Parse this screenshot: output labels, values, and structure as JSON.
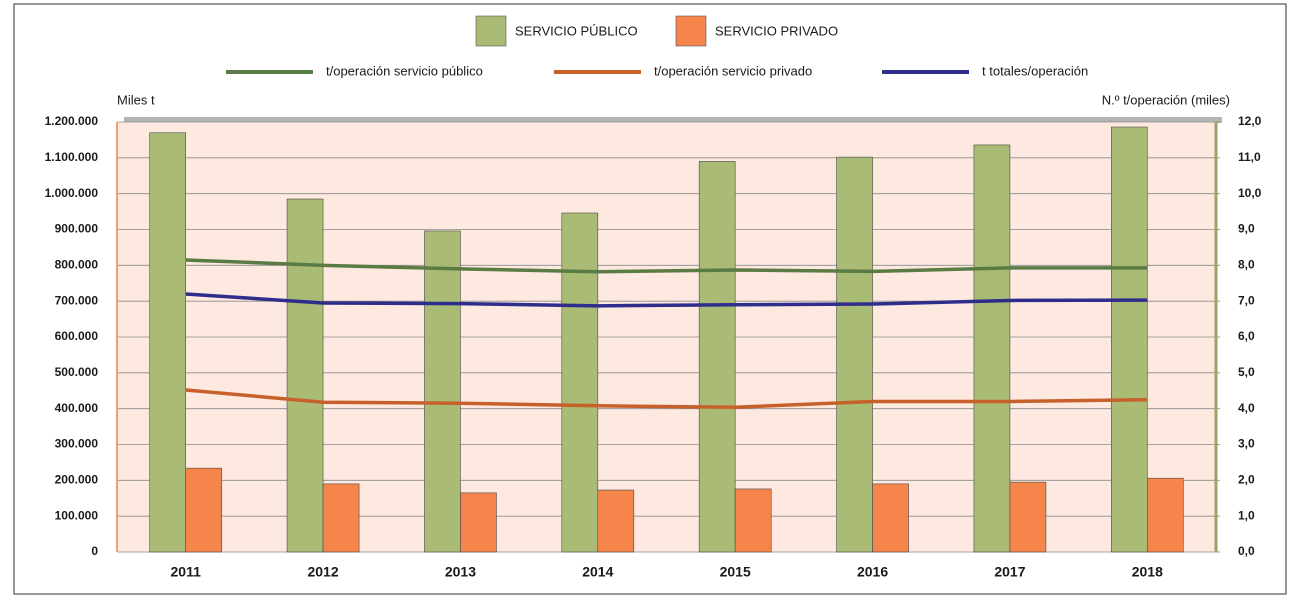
{
  "chart_data": {
    "type": "bar",
    "y_label": "Miles t",
    "y2_label": "N.º t/operación (miles)",
    "categories": [
      "2011",
      "2012",
      "2013",
      "2014",
      "2015",
      "2016",
      "2017",
      "2018"
    ],
    "series": [
      {
        "name": "SERVICIO PÚBLICO",
        "type": "bar",
        "color": "#a9bb74",
        "values": [
          1170000,
          985000,
          896000,
          946000,
          1090000,
          1102000,
          1136000,
          1186000
        ]
      },
      {
        "name": "SERVICIO PRIVADO",
        "type": "bar",
        "color": "#f5854a",
        "values": [
          234000,
          190000,
          165000,
          173000,
          176000,
          190000,
          195000,
          206000
        ]
      },
      {
        "name": "t/operación servicio público",
        "type": "line",
        "axis": "y2",
        "color": "#5b7b45",
        "values": [
          8.15,
          8.0,
          7.9,
          7.82,
          7.87,
          7.83,
          7.93,
          7.93
        ]
      },
      {
        "name": "t/operación servicio privado",
        "type": "line",
        "axis": "y2",
        "color": "#c7612b",
        "values": [
          4.52,
          4.18,
          4.15,
          4.08,
          4.04,
          4.2,
          4.2,
          4.25
        ]
      },
      {
        "name": "t totales/operación",
        "type": "line",
        "axis": "y2",
        "color": "#2f2d8c",
        "values": [
          7.2,
          6.95,
          6.93,
          6.87,
          6.9,
          6.92,
          7.02,
          7.03
        ]
      }
    ],
    "ylim": [
      0,
      1200000
    ],
    "yticks": [
      0,
      {
        "value": 100000,
        "label": "100.000"
      },
      {
        "value": 200000,
        "label": "200.000"
      },
      {
        "value": 300000,
        "label": "300.000"
      },
      {
        "value": 400000,
        "label": "400.000"
      },
      {
        "value": 500000,
        "label": "500.000"
      },
      {
        "value": 600000,
        "label": "600.000"
      },
      {
        "value": 700000,
        "label": "700.000"
      },
      {
        "value": 800000,
        "label": "800.000"
      },
      {
        "value": 900000,
        "label": "900.000"
      },
      {
        "value": 1000000,
        "label": "1.000.000"
      },
      {
        "value": 1100000,
        "label": "1.100.000"
      },
      {
        "value": 1200000,
        "label": "1.200.000"
      }
    ],
    "y2lim": [
      0,
      12
    ],
    "y2ticks": [
      {
        "value": 0,
        "label": "0,0"
      },
      {
        "value": 1,
        "label": "1,0"
      },
      {
        "value": 2,
        "label": "2,0"
      },
      {
        "value": 3,
        "label": "3,0"
      },
      {
        "value": 4,
        "label": "4,0"
      },
      {
        "value": 5,
        "label": "5,0"
      },
      {
        "value": 6,
        "label": "6,0"
      },
      {
        "value": 7,
        "label": "7,0"
      },
      {
        "value": 8,
        "label": "8,0"
      },
      {
        "value": 9,
        "label": "9,0"
      },
      {
        "value": 10,
        "label": "10,0"
      },
      {
        "value": 11,
        "label": "11,0"
      },
      {
        "value": 12,
        "label": "12,0"
      }
    ],
    "grid": true
  }
}
